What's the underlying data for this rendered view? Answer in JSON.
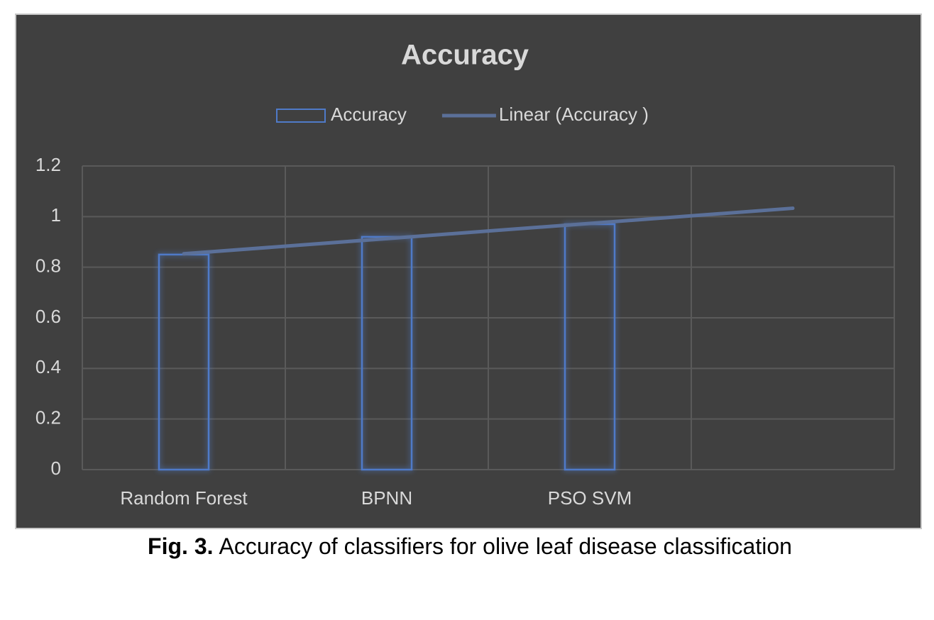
{
  "chart_data": {
    "type": "bar",
    "title": "Accuracy",
    "categories": [
      "Random Forest",
      "BPNN",
      "PSO SVM",
      null
    ],
    "series": [
      {
        "name": "Accuracy",
        "type": "bar",
        "color": "#4f7ac8",
        "values": [
          0.85,
          0.92,
          0.97,
          null
        ]
      },
      {
        "name": "Linear (Accuracy )",
        "type": "line",
        "color": "#5b7099",
        "values": [
          0.853,
          0.913,
          0.973,
          1.033
        ]
      }
    ],
    "ylim": [
      0,
      1.2
    ],
    "yticks": [
      0,
      0.2,
      0.4,
      0.6,
      0.8,
      1,
      1.2
    ],
    "grid": true,
    "legend": "top"
  },
  "caption": {
    "label": "Fig. 3.",
    "text": "Accuracy of classifiers for olive leaf disease classification"
  }
}
